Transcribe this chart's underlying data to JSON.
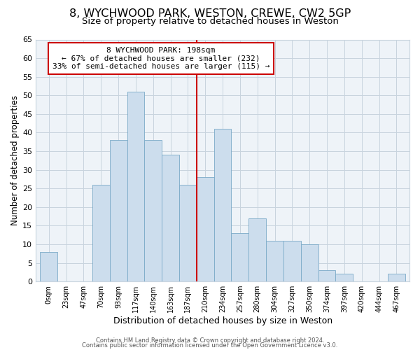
{
  "title1": "8, WYCHWOOD PARK, WESTON, CREWE, CW2 5GP",
  "title2": "Size of property relative to detached houses in Weston",
  "xlabel": "Distribution of detached houses by size in Weston",
  "ylabel": "Number of detached properties",
  "bin_labels": [
    "0sqm",
    "23sqm",
    "47sqm",
    "70sqm",
    "93sqm",
    "117sqm",
    "140sqm",
    "163sqm",
    "187sqm",
    "210sqm",
    "234sqm",
    "257sqm",
    "280sqm",
    "304sqm",
    "327sqm",
    "350sqm",
    "374sqm",
    "397sqm",
    "420sqm",
    "444sqm",
    "467sqm"
  ],
  "bar_heights": [
    8,
    0,
    0,
    26,
    38,
    51,
    38,
    34,
    26,
    28,
    41,
    13,
    17,
    11,
    11,
    10,
    3,
    2,
    0,
    0,
    2
  ],
  "bar_color": "#ccdded",
  "bar_edgecolor": "#7aaac8",
  "vline_x": 8.5,
  "vline_color": "#cc0000",
  "annotation_text": "8 WYCHWOOD PARK: 198sqm\n← 67% of detached houses are smaller (232)\n33% of semi-detached houses are larger (115) →",
  "annotation_box_edgecolor": "#cc0000",
  "annotation_box_facecolor": "#ffffff",
  "ylim": [
    0,
    65
  ],
  "yticks": [
    0,
    5,
    10,
    15,
    20,
    25,
    30,
    35,
    40,
    45,
    50,
    55,
    60,
    65
  ],
  "footer1": "Contains HM Land Registry data © Crown copyright and database right 2024.",
  "footer2": "Contains public sector information licensed under the Open Government Licence v3.0.",
  "bg_color": "#ffffff",
  "grid_color": "#c8d4de",
  "title1_fontsize": 11.5,
  "title2_fontsize": 9.5,
  "annot_fontsize": 8.0,
  "ylabel_fontsize": 8.5,
  "xlabel_fontsize": 9.0
}
